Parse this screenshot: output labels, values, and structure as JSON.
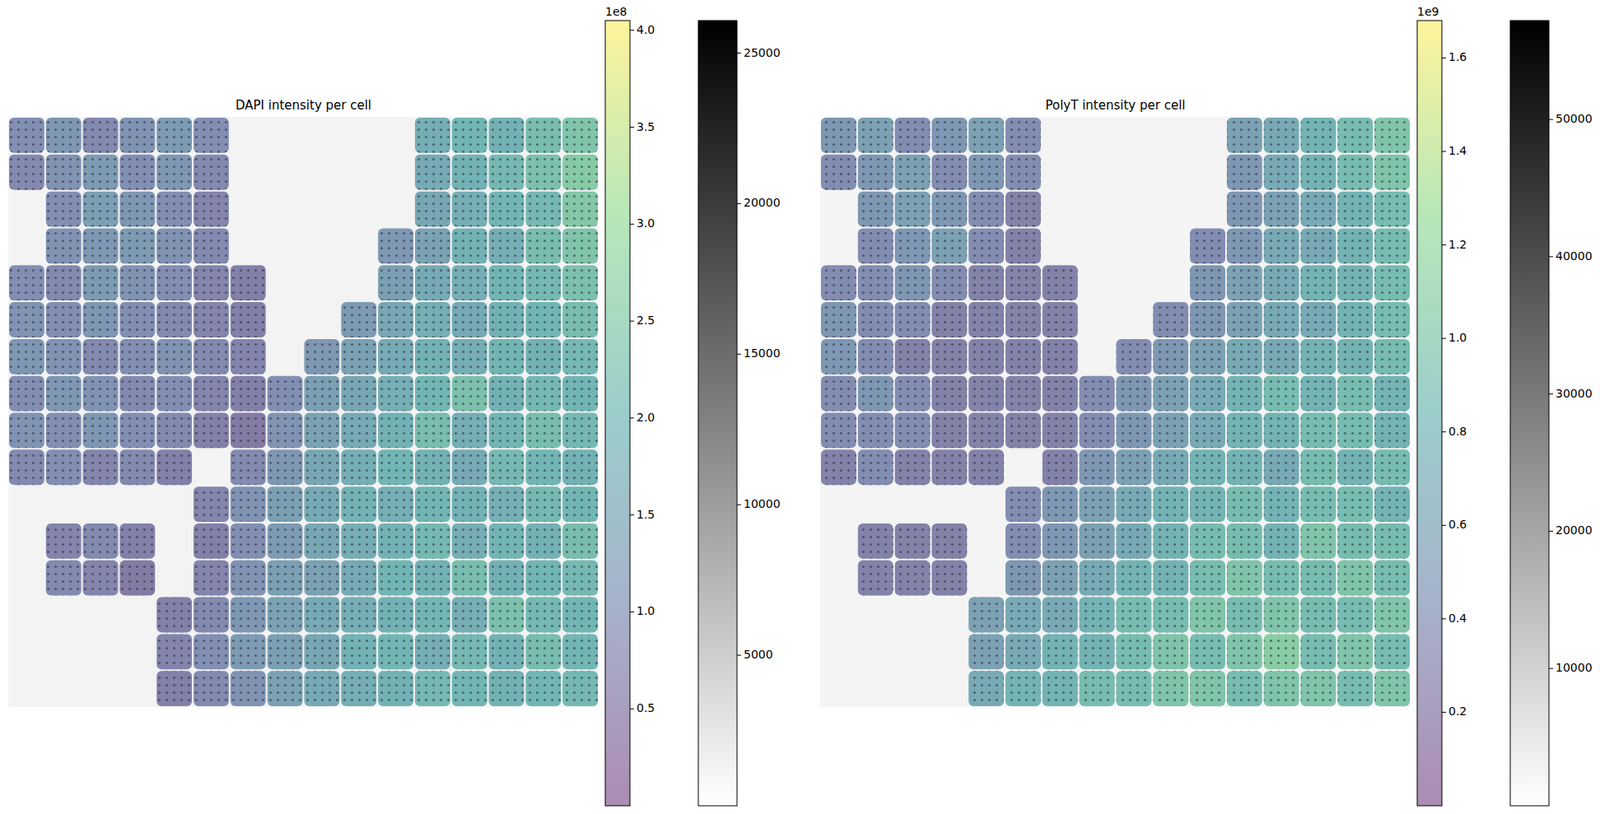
{
  "chart_data": [
    {
      "type": "heatmap",
      "title": "DAPI intensity per cell",
      "background_value": 1200,
      "colorbar": {
        "range": [
          0,
          405000000.0
        ],
        "offset_label": "1e8",
        "ticks": [
          {
            "value": 50000000.0,
            "label": "0.5"
          },
          {
            "value": 100000000.0,
            "label": "1.0"
          },
          {
            "value": 150000000.0,
            "label": "1.5"
          },
          {
            "value": 200000000.0,
            "label": "2.0"
          },
          {
            "value": 250000000.0,
            "label": "2.5"
          },
          {
            "value": 300000000.0,
            "label": "3.0"
          },
          {
            "value": 350000000.0,
            "label": "3.5"
          },
          {
            "value": 400000000.0,
            "label": "4.0"
          }
        ]
      },
      "image_colorbar": {
        "range": [
          0,
          26080
        ],
        "ticks": [
          5000,
          10000,
          15000,
          20000,
          25000
        ]
      },
      "cells": [
        [
          100000000.0,
          120000000.0,
          90000000.0,
          110000000.0,
          130000000.0,
          100000000.0,
          null,
          null,
          null,
          null,
          null,
          180000000.0,
          200000000.0,
          190000000.0,
          220000000.0,
          240000000.0
        ],
        [
          90000000.0,
          110000000.0,
          130000000.0,
          100000000.0,
          120000000.0,
          90000000.0,
          null,
          null,
          null,
          null,
          null,
          170000000.0,
          190000000.0,
          210000000.0,
          230000000.0,
          260000000.0
        ],
        [
          null,
          100000000.0,
          140000000.0,
          120000000.0,
          100000000.0,
          80000000.0,
          null,
          null,
          null,
          null,
          null,
          160000000.0,
          180000000.0,
          200000000.0,
          210000000.0,
          250000000.0
        ],
        [
          null,
          110000000.0,
          120000000.0,
          130000000.0,
          110000000.0,
          90000000.0,
          null,
          null,
          null,
          null,
          120000000.0,
          150000000.0,
          190000000.0,
          180000000.0,
          220000000.0,
          240000000.0
        ],
        [
          100000000.0,
          90000000.0,
          130000000.0,
          110000000.0,
          100000000.0,
          80000000.0,
          70000000.0,
          null,
          null,
          null,
          140000000.0,
          170000000.0,
          180000000.0,
          200000000.0,
          210000000.0,
          230000000.0
        ],
        [
          110000000.0,
          100000000.0,
          120000000.0,
          100000000.0,
          90000000.0,
          80000000.0,
          70000000.0,
          null,
          null,
          130000000.0,
          160000000.0,
          180000000.0,
          170000000.0,
          190000000.0,
          200000000.0,
          220000000.0
        ],
        [
          120000000.0,
          110000000.0,
          90000000.0,
          100000000.0,
          110000000.0,
          90000000.0,
          80000000.0,
          null,
          120000000.0,
          150000000.0,
          170000000.0,
          190000000.0,
          180000000.0,
          200000000.0,
          190000000.0,
          210000000.0
        ],
        [
          100000000.0,
          120000000.0,
          110000000.0,
          90000000.0,
          100000000.0,
          80000000.0,
          70000000.0,
          100000000.0,
          140000000.0,
          160000000.0,
          180000000.0,
          200000000.0,
          230000000.0,
          190000000.0,
          210000000.0,
          200000000.0
        ],
        [
          110000000.0,
          100000000.0,
          120000000.0,
          100000000.0,
          90000000.0,
          70000000.0,
          60000000.0,
          110000000.0,
          150000000.0,
          170000000.0,
          190000000.0,
          220000000.0,
          180000000.0,
          200000000.0,
          220000000.0,
          210000000.0
        ],
        [
          90000000.0,
          100000000.0,
          80000000.0,
          90000000.0,
          70000000.0,
          null,
          90000000.0,
          120000000.0,
          160000000.0,
          180000000.0,
          200000000.0,
          190000000.0,
          170000000.0,
          210000000.0,
          200000000.0,
          190000000.0
        ],
        [
          null,
          null,
          null,
          null,
          null,
          80000000.0,
          110000000.0,
          140000000.0,
          170000000.0,
          190000000.0,
          180000000.0,
          200000000.0,
          190000000.0,
          180000000.0,
          210000000.0,
          200000000.0
        ],
        [
          null,
          80000000.0,
          90000000.0,
          70000000.0,
          null,
          70000000.0,
          100000000.0,
          130000000.0,
          160000000.0,
          180000000.0,
          190000000.0,
          210000000.0,
          180000000.0,
          200000000.0,
          190000000.0,
          220000000.0
        ],
        [
          null,
          90000000.0,
          80000000.0,
          60000000.0,
          null,
          80000000.0,
          110000000.0,
          140000000.0,
          150000000.0,
          170000000.0,
          200000000.0,
          190000000.0,
          220000000.0,
          190000000.0,
          200000000.0,
          210000000.0
        ],
        [
          null,
          null,
          null,
          null,
          70000000.0,
          90000000.0,
          120000000.0,
          150000000.0,
          170000000.0,
          180000000.0,
          190000000.0,
          200000000.0,
          180000000.0,
          230000000.0,
          210000000.0,
          200000000.0
        ],
        [
          null,
          null,
          null,
          null,
          80000000.0,
          100000000.0,
          130000000.0,
          140000000.0,
          160000000.0,
          190000000.0,
          200000000.0,
          180000000.0,
          210000000.0,
          190000000.0,
          220000000.0,
          200000000.0
        ],
        [
          null,
          null,
          null,
          null,
          70000000.0,
          90000000.0,
          110000000.0,
          150000000.0,
          170000000.0,
          180000000.0,
          190000000.0,
          210000000.0,
          200000000.0,
          190000000.0,
          200000000.0,
          210000000.0
        ]
      ]
    },
    {
      "type": "heatmap",
      "title": "PolyT intensity per cell",
      "background_value": 2500,
      "colorbar": {
        "range": [
          0,
          1680000000.0
        ],
        "offset_label": "1e9",
        "ticks": [
          {
            "value": 200000000.0,
            "label": "0.2"
          },
          {
            "value": 400000000.0,
            "label": "0.4"
          },
          {
            "value": 600000000.0,
            "label": "0.6"
          },
          {
            "value": 800000000.0,
            "label": "0.8"
          },
          {
            "value": 1000000000.0,
            "label": "1.0"
          },
          {
            "value": 1200000000.0,
            "label": "1.2"
          },
          {
            "value": 1400000000.0,
            "label": "1.4"
          },
          {
            "value": 1600000000.0,
            "label": "1.6"
          }
        ]
      },
      "image_colorbar": {
        "range": [
          0,
          57200
        ],
        "ticks": [
          10000,
          20000,
          30000,
          40000,
          50000
        ]
      },
      "cells": [
        [
          500000000.0,
          600000000.0,
          400000000.0,
          500000000.0,
          600000000.0,
          400000000.0,
          null,
          null,
          null,
          null,
          null,
          600000000.0,
          700000000.0,
          800000000.0,
          900000000.0,
          1000000000.0
        ],
        [
          400000000.0,
          500000000.0,
          600000000.0,
          400000000.0,
          500000000.0,
          400000000.0,
          null,
          null,
          null,
          null,
          null,
          500000000.0,
          700000000.0,
          800000000.0,
          900000000.0,
          1000000000.0
        ],
        [
          null,
          500000000.0,
          600000000.0,
          500000000.0,
          400000000.0,
          300000000.0,
          null,
          null,
          null,
          null,
          null,
          500000000.0,
          600000000.0,
          700000000.0,
          800000000.0,
          900000000.0
        ],
        [
          null,
          400000000.0,
          500000000.0,
          600000000.0,
          400000000.0,
          300000000.0,
          null,
          null,
          null,
          null,
          400000000.0,
          500000000.0,
          700000000.0,
          700000000.0,
          800000000.0,
          900000000.0
        ],
        [
          400000000.0,
          400000000.0,
          500000000.0,
          400000000.0,
          300000000.0,
          300000000.0,
          300000000.0,
          null,
          null,
          null,
          500000000.0,
          600000000.0,
          700000000.0,
          800000000.0,
          800000000.0,
          900000000.0
        ],
        [
          500000000.0,
          400000000.0,
          400000000.0,
          300000000.0,
          300000000.0,
          300000000.0,
          300000000.0,
          null,
          null,
          400000000.0,
          500000000.0,
          600000000.0,
          700000000.0,
          700000000.0,
          800000000.0,
          900000000.0
        ],
        [
          500000000.0,
          400000000.0,
          300000000.0,
          300000000.0,
          300000000.0,
          300000000.0,
          300000000.0,
          null,
          400000000.0,
          500000000.0,
          600000000.0,
          700000000.0,
          700000000.0,
          800000000.0,
          800000000.0,
          900000000.0
        ],
        [
          400000000.0,
          500000000.0,
          400000000.0,
          300000000.0,
          300000000.0,
          300000000.0,
          300000000.0,
          400000000.0,
          500000000.0,
          600000000.0,
          700000000.0,
          800000000.0,
          900000000.0,
          800000000.0,
          900000000.0,
          800000000.0
        ],
        [
          400000000.0,
          400000000.0,
          400000000.0,
          300000000.0,
          300000000.0,
          300000000.0,
          300000000.0,
          400000000.0,
          500000000.0,
          600000000.0,
          700000000.0,
          800000000.0,
          800000000.0,
          900000000.0,
          900000000.0,
          800000000.0
        ],
        [
          300000000.0,
          400000000.0,
          300000000.0,
          300000000.0,
          300000000.0,
          null,
          300000000.0,
          500000000.0,
          600000000.0,
          700000000.0,
          800000000.0,
          800000000.0,
          700000000.0,
          900000000.0,
          800000000.0,
          900000000.0
        ],
        [
          null,
          null,
          null,
          null,
          null,
          400000000.0,
          500000000.0,
          600000000.0,
          700000000.0,
          800000000.0,
          800000000.0,
          900000000.0,
          800000000.0,
          900000000.0,
          900000000.0,
          800000000.0
        ],
        [
          null,
          300000000.0,
          300000000.0,
          300000000.0,
          null,
          400000000.0,
          500000000.0,
          600000000.0,
          700000000.0,
          800000000.0,
          900000000.0,
          900000000.0,
          800000000.0,
          1000000000.0,
          900000000.0,
          900000000.0
        ],
        [
          null,
          300000000.0,
          300000000.0,
          300000000.0,
          null,
          500000000.0,
          600000000.0,
          700000000.0,
          800000000.0,
          800000000.0,
          900000000.0,
          1000000000.0,
          900000000.0,
          900000000.0,
          1000000000.0,
          900000000.0
        ],
        [
          null,
          null,
          null,
          null,
          600000000.0,
          700000000.0,
          700000000.0,
          800000000.0,
          900000000.0,
          900000000.0,
          1000000000.0,
          900000000.0,
          1000000000.0,
          900000000.0,
          900000000.0,
          1000000000.0
        ],
        [
          null,
          null,
          null,
          null,
          600000000.0,
          700000000.0,
          800000000.0,
          800000000.0,
          900000000.0,
          1000000000.0,
          900000000.0,
          1000000000.0,
          1100000000.0,
          900000000.0,
          1000000000.0,
          900000000.0
        ],
        [
          null,
          null,
          null,
          null,
          700000000.0,
          800000000.0,
          800000000.0,
          900000000.0,
          900000000.0,
          1000000000.0,
          1000000000.0,
          900000000.0,
          1000000000.0,
          1000000000.0,
          900000000.0,
          1000000000.0
        ]
      ]
    }
  ]
}
